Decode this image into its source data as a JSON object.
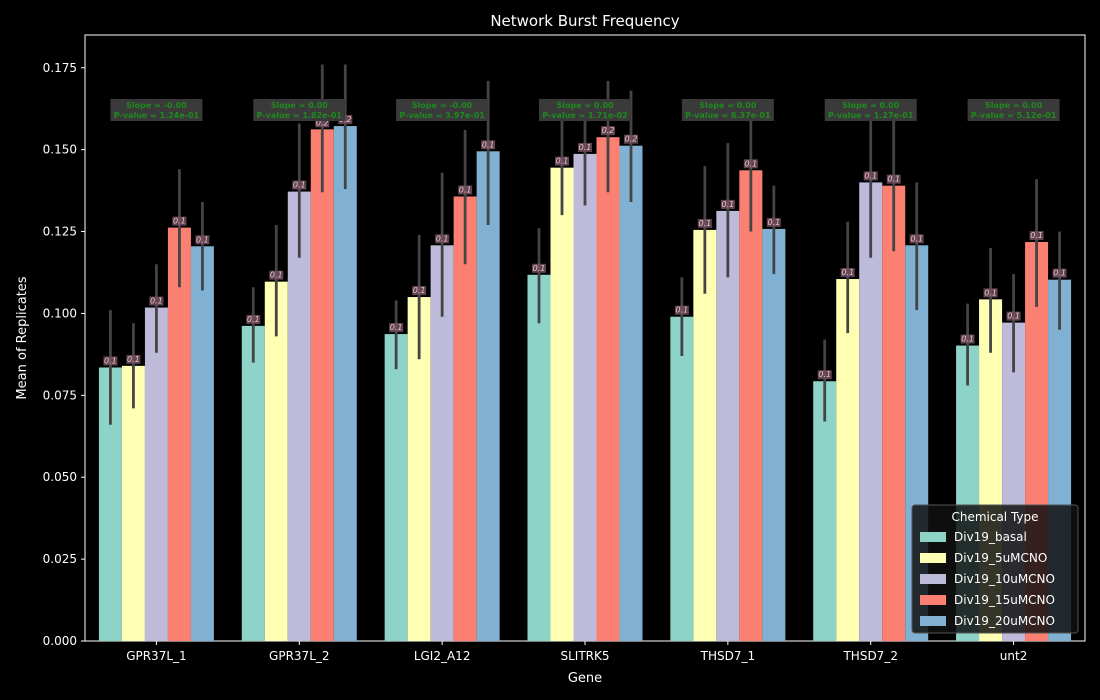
{
  "chart_data": {
    "type": "bar",
    "title": "Network Burst Frequency",
    "xlabel": "Gene",
    "ylabel": "Mean of Replicates",
    "ylim": [
      0,
      0.185
    ],
    "yticks": [
      "0.000",
      "0.025",
      "0.050",
      "0.075",
      "0.100",
      "0.125",
      "0.150",
      "0.175"
    ],
    "categories": [
      "GPR37L_1",
      "GPR37L_2",
      "LGI2_A12",
      "SLITRK5",
      "THSD7_1",
      "THSD7_2",
      "unt2"
    ],
    "series": [
      {
        "name": "Div19_basal",
        "color": "#8dd3c7",
        "values": [
          0.0835,
          0.0962,
          0.0937,
          0.1118,
          0.099,
          0.0793,
          0.0902
        ],
        "err_low": [
          0.066,
          0.085,
          0.083,
          0.097,
          0.087,
          0.067,
          0.078
        ],
        "err_high": [
          0.101,
          0.108,
          0.104,
          0.126,
          0.111,
          0.092,
          0.103
        ],
        "labels": [
          "0.1",
          "0.1",
          "0.1",
          "0.1",
          "0.1",
          "0.1",
          "0.1"
        ]
      },
      {
        "name": "Div19_5uMCNO",
        "color": "#ffffb3",
        "values": [
          0.084,
          0.1097,
          0.105,
          0.1445,
          0.1255,
          0.1105,
          0.1043
        ],
        "err_low": [
          0.071,
          0.093,
          0.086,
          0.13,
          0.106,
          0.094,
          0.088
        ],
        "err_high": [
          0.097,
          0.127,
          0.124,
          0.16,
          0.145,
          0.128,
          0.12
        ],
        "labels": [
          "0.1",
          "0.1",
          "0.1",
          "0.1",
          "0.1",
          "0.1",
          "0.1"
        ]
      },
      {
        "name": "Div19_10uMCNO",
        "color": "#bebada",
        "values": [
          0.1018,
          0.1372,
          0.1208,
          0.1487,
          0.1313,
          0.14,
          0.0972
        ],
        "err_low": [
          0.088,
          0.117,
          0.099,
          0.133,
          0.111,
          0.117,
          0.082
        ],
        "err_high": [
          0.115,
          0.158,
          0.143,
          0.163,
          0.152,
          0.165,
          0.112
        ],
        "labels": [
          "0.1",
          "0.1",
          "0.1",
          "0.1",
          "0.1",
          "0.1",
          "0.1"
        ]
      },
      {
        "name": "Div19_15uMCNO",
        "color": "#fb8072",
        "values": [
          0.1262,
          0.1562,
          0.1357,
          0.1538,
          0.1437,
          0.139,
          0.1218
        ],
        "err_low": [
          0.108,
          0.137,
          0.115,
          0.137,
          0.125,
          0.119,
          0.102
        ],
        "err_high": [
          0.144,
          0.176,
          0.156,
          0.171,
          0.162,
          0.159,
          0.141
        ],
        "labels": [
          "0.1",
          "0.2",
          "0.1",
          "0.2",
          "0.1",
          "0.1",
          "0.1"
        ]
      },
      {
        "name": "Div19_20uMCNO",
        "color": "#80b1d3",
        "values": [
          0.1205,
          0.1572,
          0.1495,
          0.1512,
          0.1258,
          0.1208,
          0.1103
        ],
        "err_low": [
          0.107,
          0.138,
          0.127,
          0.134,
          0.112,
          0.101,
          0.095
        ],
        "err_high": [
          0.134,
          0.176,
          0.171,
          0.168,
          0.139,
          0.14,
          0.125
        ],
        "labels": [
          "0.1",
          "0.2",
          "0.1",
          "0.2",
          "0.1",
          "0.1",
          "0.1"
        ]
      }
    ],
    "annotations": [
      {
        "category": "GPR37L_1",
        "slope": "Slope = -0.00",
        "pvalue": "P-value = 1.24e-01"
      },
      {
        "category": "GPR37L_2",
        "slope": "Slope = 0.00",
        "pvalue": "P-value = 1.82e-01"
      },
      {
        "category": "LGI2_A12",
        "slope": "Slope = -0.00",
        "pvalue": "P-value = 3.97e-01"
      },
      {
        "category": "SLITRK5",
        "slope": "Slope = 0.00",
        "pvalue": "P-value = 1.71e-02"
      },
      {
        "category": "THSD7_1",
        "slope": "Slope = 0.00",
        "pvalue": "P-value = 8.37e-01"
      },
      {
        "category": "THSD7_2",
        "slope": "Slope = 0.00",
        "pvalue": "P-value = 1.27e-01"
      },
      {
        "category": "unt2",
        "slope": "Slope = 0.00",
        "pvalue": "P-value = 5.12e-01"
      }
    ],
    "legend": {
      "title": "Chemical Type",
      "position": "lower-right"
    },
    "colors": {
      "background": "#000000",
      "axis": "#ffffff",
      "annotation_text": "#1e8a1e",
      "annotation_box": "#3a3a3a",
      "bar_label_text": "#f4c2c2",
      "error_bar": "#444444"
    }
  }
}
